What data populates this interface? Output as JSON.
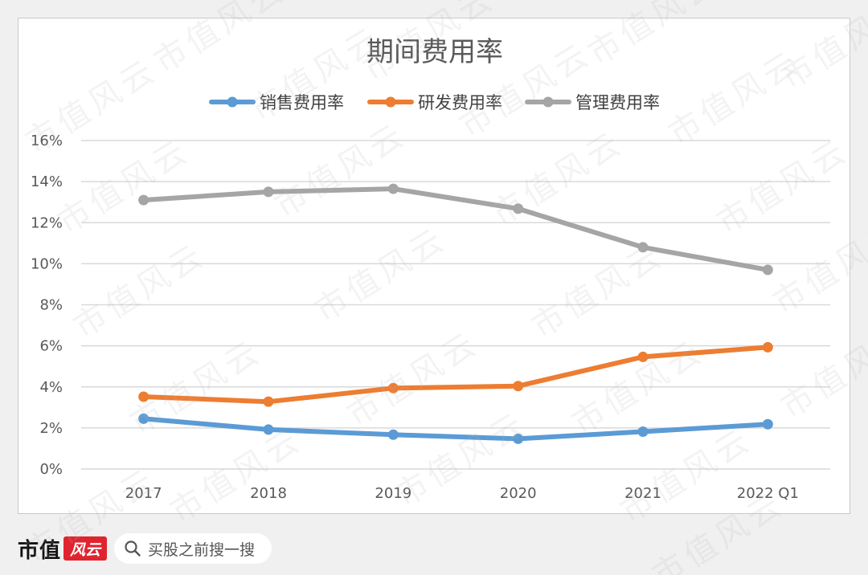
{
  "chart_data": {
    "type": "line",
    "title": "期间费用率",
    "categories": [
      "2017",
      "2018",
      "2019",
      "2020",
      "2021",
      "2022 Q1"
    ],
    "y_ticks": [
      "0%",
      "2%",
      "4%",
      "6%",
      "8%",
      "10%",
      "12%",
      "14%",
      "16%"
    ],
    "ylim": [
      0,
      16
    ],
    "grid": true,
    "legend_position": "top",
    "series": [
      {
        "name": "销售费用率",
        "color": "#5b9bd5",
        "values": [
          2.45,
          1.92,
          1.67,
          1.47,
          1.82,
          2.18
        ]
      },
      {
        "name": "研发费用率",
        "color": "#ed7d31",
        "values": [
          3.52,
          3.28,
          3.94,
          4.04,
          5.46,
          5.93
        ]
      },
      {
        "name": "管理费用率",
        "color": "#a5a5a5",
        "values": [
          13.1,
          13.5,
          13.65,
          12.68,
          10.8,
          9.7
        ]
      }
    ]
  },
  "footer": {
    "brand_text": "市值",
    "brand_seal_text": "风云",
    "search_placeholder": "买股之前搜一搜",
    "search_icon": "search-icon"
  },
  "watermark": {
    "text": "市值风云"
  }
}
